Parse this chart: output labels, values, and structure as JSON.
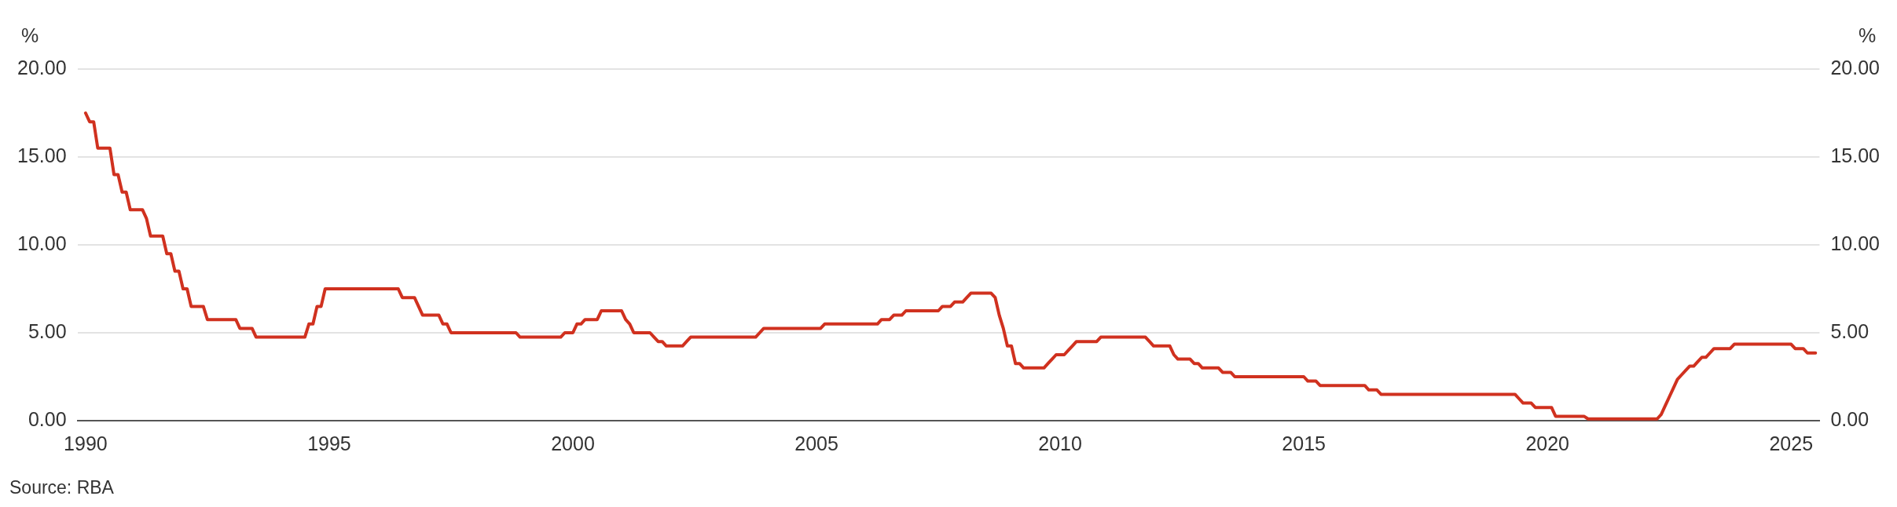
{
  "chart_data": {
    "type": "line",
    "ylabel": "%",
    "y2label": "%",
    "annotations": [
      "Source: RBA"
    ],
    "xlim": [
      "1989-11",
      "2025-08"
    ],
    "xticks": [
      {
        "value": "1990",
        "label": "1990"
      },
      {
        "value": "1995",
        "label": "1995"
      },
      {
        "value": "2000",
        "label": "2000"
      },
      {
        "value": "2005",
        "label": "2005"
      },
      {
        "value": "2010",
        "label": "2010"
      },
      {
        "value": "2015",
        "label": "2015"
      },
      {
        "value": "2020",
        "label": "2020"
      },
      {
        "value": "2025",
        "label": "2025"
      }
    ],
    "ylim": [
      0,
      20
    ],
    "yticks": [
      {
        "value": 0,
        "label": "0.00"
      },
      {
        "value": 5,
        "label": "5.00"
      },
      {
        "value": 10,
        "label": "10.00"
      },
      {
        "value": 15,
        "label": "15.00"
      },
      {
        "value": 20,
        "label": "20.00"
      }
    ],
    "y2lim": [
      0,
      20
    ],
    "y2ticks": [
      {
        "value": 0,
        "label": "0.00"
      },
      {
        "value": 5,
        "label": "5.00"
      },
      {
        "value": 10,
        "label": "10.00"
      },
      {
        "value": 15,
        "label": "15.00"
      },
      {
        "value": 20,
        "label": "20.00"
      }
    ],
    "grid": "y",
    "legend": false,
    "marker": "none",
    "line_style": "solid",
    "series": [
      {
        "color": "#d0311f",
        "x": [
          "1990-01",
          "1990-02",
          "1990-03",
          "1990-04",
          "1990-07",
          "1990-08",
          "1990-09",
          "1990-10",
          "1990-11",
          "1990-12",
          "1991-03",
          "1991-04",
          "1991-05",
          "1991-08",
          "1991-09",
          "1991-10",
          "1991-11",
          "1991-12",
          "1992-01",
          "1992-02",
          "1992-03",
          "1992-06",
          "1992-07",
          "1993-02",
          "1993-03",
          "1993-06",
          "1993-07",
          "1994-07",
          "1994-08",
          "1994-09",
          "1994-10",
          "1994-11",
          "1994-12",
          "1996-06",
          "1996-07",
          "1996-10",
          "1996-11",
          "1996-12",
          "1997-04",
          "1997-05",
          "1997-06",
          "1997-07",
          "1998-11",
          "1998-12",
          "1999-10",
          "1999-11",
          "2000-01",
          "2000-02",
          "2000-03",
          "2000-04",
          "2000-07",
          "2000-08",
          "2001-01",
          "2001-02",
          "2001-03",
          "2001-04",
          "2001-08",
          "2001-09",
          "2001-10",
          "2001-11",
          "2001-12",
          "2002-04",
          "2002-05",
          "2002-06",
          "2003-10",
          "2003-11",
          "2003-12",
          "2005-02",
          "2005-03",
          "2006-04",
          "2006-05",
          "2006-07",
          "2006-08",
          "2006-10",
          "2006-11",
          "2007-07",
          "2007-08",
          "2007-10",
          "2007-11",
          "2008-01",
          "2008-02",
          "2008-03",
          "2008-08",
          "2008-09",
          "2008-10",
          "2008-11",
          "2008-12",
          "2009-01",
          "2009-02",
          "2009-03",
          "2009-04",
          "2009-09",
          "2009-10",
          "2009-11",
          "2009-12",
          "2010-02",
          "2010-03",
          "2010-04",
          "2010-05",
          "2010-10",
          "2010-11",
          "2011-10",
          "2011-11",
          "2011-12",
          "2012-04",
          "2012-05",
          "2012-06",
          "2012-09",
          "2012-10",
          "2012-11",
          "2012-12",
          "2013-04",
          "2013-05",
          "2013-07",
          "2013-08",
          "2015-01",
          "2015-02",
          "2015-04",
          "2015-05",
          "2016-04",
          "2016-05",
          "2016-07",
          "2016-08",
          "2019-05",
          "2019-06",
          "2019-07",
          "2019-09",
          "2019-10",
          "2020-02",
          "2020-03",
          "2020-10",
          "2020-11",
          "2022-04",
          "2022-05",
          "2022-06",
          "2022-07",
          "2022-08",
          "2022-09",
          "2022-10",
          "2022-11",
          "2022-12",
          "2023-01",
          "2023-02",
          "2023-03",
          "2023-04",
          "2023-05",
          "2023-06",
          "2023-10",
          "2023-11",
          "2025-01",
          "2025-02",
          "2025-04",
          "2025-05",
          "2025-07"
        ],
        "values": [
          17.5,
          17.0,
          17.0,
          15.5,
          15.5,
          14.0,
          14.0,
          13.0,
          13.0,
          12.0,
          12.0,
          11.5,
          10.5,
          10.5,
          9.5,
          9.5,
          8.5,
          8.5,
          7.5,
          7.5,
          6.5,
          6.5,
          5.75,
          5.75,
          5.25,
          5.25,
          4.75,
          4.75,
          5.5,
          5.5,
          6.5,
          6.5,
          7.5,
          7.5,
          7.0,
          7.0,
          6.5,
          6.0,
          6.0,
          5.5,
          5.5,
          5.0,
          5.0,
          4.75,
          4.75,
          5.0,
          5.0,
          5.5,
          5.5,
          5.75,
          5.75,
          6.25,
          6.25,
          5.75,
          5.5,
          5.0,
          5.0,
          4.75,
          4.5,
          4.5,
          4.25,
          4.25,
          4.5,
          4.75,
          4.75,
          5.0,
          5.25,
          5.25,
          5.5,
          5.5,
          5.75,
          5.75,
          6.0,
          6.0,
          6.25,
          6.25,
          6.5,
          6.5,
          6.75,
          6.75,
          7.0,
          7.25,
          7.25,
          7.0,
          6.0,
          5.25,
          4.25,
          4.25,
          3.25,
          3.25,
          3.0,
          3.0,
          3.25,
          3.5,
          3.75,
          3.75,
          4.0,
          4.25,
          4.5,
          4.5,
          4.75,
          4.75,
          4.5,
          4.25,
          4.25,
          3.75,
          3.5,
          3.5,
          3.25,
          3.25,
          3.0,
          3.0,
          2.75,
          2.75,
          2.5,
          2.5,
          2.25,
          2.25,
          2.0,
          2.0,
          1.75,
          1.75,
          1.5,
          1.5,
          1.25,
          1.0,
          1.0,
          0.75,
          0.75,
          0.25,
          0.25,
          0.1,
          0.1,
          0.35,
          0.85,
          1.35,
          1.85,
          2.35,
          2.6,
          2.85,
          3.1,
          3.1,
          3.35,
          3.6,
          3.6,
          3.85,
          4.1,
          4.1,
          4.35,
          4.35,
          4.1,
          4.1,
          3.85,
          3.85
        ]
      }
    ]
  }
}
